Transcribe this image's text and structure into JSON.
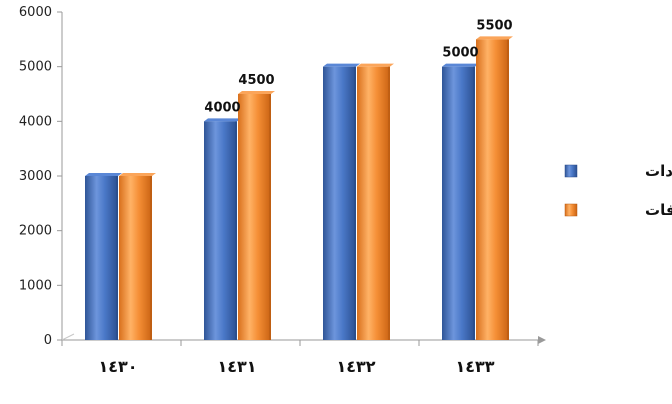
{
  "chart_data": {
    "type": "bar",
    "categories": [
      "١٤٣٠",
      "١٤٣١",
      "١٤٣٢",
      "١٤٣٣"
    ],
    "series": [
      {
        "name": "الايرادات",
        "values": [
          3000,
          4000,
          5000,
          5000
        ],
        "color": "#4472C4"
      },
      {
        "name": "المصروفات",
        "values": [
          3000,
          4500,
          5000,
          5500
        ],
        "color": "#F79646"
      }
    ],
    "data_labels": [
      {
        "series": 0,
        "index": 1,
        "text": "4000"
      },
      {
        "series": 1,
        "index": 1,
        "text": "4500"
      },
      {
        "series": 0,
        "index": 3,
        "text": "5000"
      },
      {
        "series": 1,
        "index": 3,
        "text": "5500"
      }
    ],
    "y_ticks": [
      "0",
      "1000",
      "2000",
      "3000",
      "4000",
      "5000",
      "6000"
    ],
    "ylim": [
      0,
      6000
    ],
    "title": "",
    "xlabel": "",
    "ylabel": "",
    "legend_position": "right",
    "grid": false
  }
}
